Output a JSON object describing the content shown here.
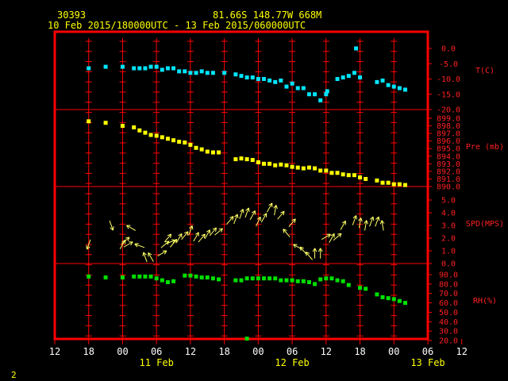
{
  "header": {
    "station": "30393",
    "location": "81.66S   148.77W    668M",
    "time_range": "10 Feb 2015/180000UTC - 13 Feb 2015/060000UTC"
  },
  "footer": {
    "page_number": "2"
  },
  "colors": {
    "frame": "#ff0000",
    "temperature": "#00e5ff",
    "pressure": "#ffff00",
    "wind": "#ffff66",
    "humidity": "#00e000",
    "axis_text": "#ff2020",
    "x_text": "#ffffff"
  },
  "x_axis": {
    "tick_labels": [
      "12",
      "18",
      "00",
      "06",
      "12",
      "18",
      "00",
      "06",
      "12",
      "18",
      "00",
      "06",
      "12"
    ],
    "date_labels": [
      "11 Feb",
      "12 Feb",
      "13 Feb"
    ]
  },
  "chart_data": [
    {
      "type": "scatter",
      "ylabel": "T(C)",
      "ylim": [
        -20,
        0
      ],
      "yticks": [
        0,
        -5,
        -10,
        -15,
        -20
      ],
      "ytick_labels": [
        "0.0",
        "-5.0",
        "-10.0",
        "-15.0",
        "-20.0"
      ],
      "points": [
        [
          -36,
          -6.5
        ],
        [
          -33,
          -6
        ],
        [
          -30,
          -6
        ],
        [
          -28,
          -6.5
        ],
        [
          -27,
          -6.5
        ],
        [
          -26,
          -6.5
        ],
        [
          -25,
          -6
        ],
        [
          -24,
          -6
        ],
        [
          -23,
          -7
        ],
        [
          -22,
          -6.5
        ],
        [
          -21,
          -6.5
        ],
        [
          -20,
          -7.5
        ],
        [
          -19,
          -7.5
        ],
        [
          -18,
          -8
        ],
        [
          -17,
          -8
        ],
        [
          -16,
          -7.5
        ],
        [
          -15,
          -8
        ],
        [
          -14,
          -8
        ],
        [
          -12,
          -8
        ],
        [
          -10,
          -8.5
        ],
        [
          -9,
          -9
        ],
        [
          -8,
          -9.5
        ],
        [
          -7,
          -9.5
        ],
        [
          -6,
          -10
        ],
        [
          -5,
          -10
        ],
        [
          -4,
          -10.5
        ],
        [
          -3,
          -11
        ],
        [
          -2,
          -10.5
        ],
        [
          -1,
          -12.5
        ],
        [
          0,
          -11.5
        ],
        [
          1,
          -13
        ],
        [
          2,
          -13
        ],
        [
          3,
          -15
        ],
        [
          4,
          -15
        ],
        [
          5,
          -17
        ],
        [
          6,
          -15
        ],
        [
          6.2,
          -14
        ],
        [
          8,
          -10
        ],
        [
          9,
          -9.5
        ],
        [
          10,
          -9
        ],
        [
          11,
          -8
        ],
        [
          11.3,
          0
        ],
        [
          12,
          -9.5
        ],
        [
          15,
          -11
        ],
        [
          16,
          -10.5
        ],
        [
          17,
          -12
        ],
        [
          18,
          -12.5
        ],
        [
          19,
          -13
        ],
        [
          20,
          -13.5
        ]
      ]
    },
    {
      "type": "scatter",
      "ylabel": "Pre (mb)",
      "ylim": [
        890,
        899
      ],
      "yticks": [
        899,
        898,
        897,
        896,
        895,
        894,
        893,
        892,
        891,
        890
      ],
      "ytick_labels": [
        "899.0",
        "898.0",
        "897.0",
        "896.0",
        "895.0",
        "894.0",
        "893.0",
        "892.0",
        "891.0",
        "890.0"
      ],
      "points": [
        [
          -36,
          898.6
        ],
        [
          -33,
          898.4
        ],
        [
          -30,
          898
        ],
        [
          -28,
          897.8
        ],
        [
          -27,
          897.4
        ],
        [
          -26,
          897.1
        ],
        [
          -25,
          896.8
        ],
        [
          -24,
          896.7
        ],
        [
          -23,
          896.5
        ],
        [
          -22,
          896.3
        ],
        [
          -21,
          896.1
        ],
        [
          -20,
          895.9
        ],
        [
          -19,
          895.8
        ],
        [
          -18,
          895.5
        ],
        [
          -17,
          895.1
        ],
        [
          -16,
          894.9
        ],
        [
          -15,
          894.6
        ],
        [
          -14,
          894.5
        ],
        [
          -13,
          894.5
        ],
        [
          -10,
          893.6
        ],
        [
          -9,
          893.7
        ],
        [
          -8,
          893.6
        ],
        [
          -7,
          893.5
        ],
        [
          -6,
          893.2
        ],
        [
          -5,
          893
        ],
        [
          -4,
          893
        ],
        [
          -3,
          892.8
        ],
        [
          -2,
          892.9
        ],
        [
          -1,
          892.8
        ],
        [
          0,
          892.6
        ],
        [
          1,
          892.5
        ],
        [
          2,
          892.4
        ],
        [
          3,
          892.5
        ],
        [
          4,
          892.4
        ],
        [
          5,
          892.1
        ],
        [
          6,
          892.1
        ],
        [
          7,
          891.8
        ],
        [
          8,
          891.8
        ],
        [
          9,
          891.6
        ],
        [
          10,
          891.5
        ],
        [
          11,
          891.5
        ],
        [
          12,
          891.2
        ],
        [
          13,
          891
        ],
        [
          15,
          890.8
        ],
        [
          16,
          890.5
        ],
        [
          17,
          890.5
        ],
        [
          18,
          890.3
        ],
        [
          19,
          890.3
        ],
        [
          20,
          890.2
        ]
      ]
    },
    {
      "type": "wind_arrows",
      "ylabel": "SPD(MPS)",
      "ylim": [
        0,
        5
      ],
      "yticks": [
        5,
        4,
        3,
        2,
        1,
        0
      ],
      "ytick_labels": [
        "5.0",
        "4.0",
        "3.0",
        "2.0",
        "1.0",
        "0.0"
      ],
      "points": [
        [
          -36,
          1.5,
          200
        ],
        [
          -32,
          3,
          160
        ],
        [
          -30,
          1.5,
          30
        ],
        [
          -29.5,
          1.8,
          50
        ],
        [
          -29,
          1.5,
          60
        ],
        [
          -28.5,
          2.8,
          300
        ],
        [
          -27,
          1.4,
          290
        ],
        [
          -26,
          0.5,
          340
        ],
        [
          -25,
          0.5,
          330
        ],
        [
          -23,
          0.8,
          60
        ],
        [
          -22.5,
          1.5,
          50
        ],
        [
          -22,
          2,
          40
        ],
        [
          -21.5,
          1.7,
          70
        ],
        [
          -21,
          1.6,
          40
        ],
        [
          -20,
          2,
          30
        ],
        [
          -19,
          2.2,
          40
        ],
        [
          -18,
          2.6,
          20
        ],
        [
          -17,
          2.1,
          30
        ],
        [
          -16,
          2,
          40
        ],
        [
          -15,
          2.3,
          30
        ],
        [
          -14,
          2.5,
          40
        ],
        [
          -13,
          2.5,
          50
        ],
        [
          -11,
          3.4,
          40
        ],
        [
          -10,
          3.5,
          20
        ],
        [
          -9,
          3.9,
          20
        ],
        [
          -8,
          4,
          20
        ],
        [
          -7,
          3.8,
          30
        ],
        [
          -6,
          3.3,
          25
        ],
        [
          -5,
          3.6,
          30
        ],
        [
          -4,
          4.4,
          30
        ],
        [
          -3,
          4.2,
          10
        ],
        [
          -2,
          3.8,
          40
        ],
        [
          -1,
          2.4,
          320
        ],
        [
          0,
          3.2,
          40
        ],
        [
          1,
          1.3,
          300
        ],
        [
          2,
          1,
          320
        ],
        [
          3,
          0.6,
          320
        ],
        [
          4,
          0.8,
          0
        ],
        [
          5,
          0.8,
          0
        ],
        [
          6,
          2.1,
          60
        ],
        [
          7,
          2,
          30
        ],
        [
          8,
          2.1,
          50
        ],
        [
          9,
          3,
          30
        ],
        [
          11,
          3.4,
          20
        ],
        [
          12,
          3.2,
          10
        ],
        [
          13,
          3,
          10
        ],
        [
          14,
          3.3,
          20
        ],
        [
          15,
          3.3,
          20
        ],
        [
          16,
          3,
          350
        ]
      ]
    },
    {
      "type": "scatter",
      "ylabel": "RH(%)",
      "ylim": [
        20,
        90
      ],
      "yticks": [
        90,
        80,
        70,
        60,
        50,
        40,
        30,
        20
      ],
      "ytick_labels": [
        "90.0",
        "80.0",
        "70.0",
        "60.0",
        "50.0",
        "40.0",
        "30.0",
        "20.0"
      ],
      "points": [
        [
          -36,
          88
        ],
        [
          -33,
          87
        ],
        [
          -30,
          87
        ],
        [
          -28,
          88
        ],
        [
          -27,
          88
        ],
        [
          -26,
          88
        ],
        [
          -25,
          88
        ],
        [
          -24,
          86
        ],
        [
          -23,
          84
        ],
        [
          -22,
          82
        ],
        [
          -21,
          83
        ],
        [
          -19,
          89
        ],
        [
          -18,
          89
        ],
        [
          -17,
          88
        ],
        [
          -16,
          87
        ],
        [
          -15,
          87
        ],
        [
          -14,
          86
        ],
        [
          -13,
          85
        ],
        [
          -10,
          84
        ],
        [
          -9,
          84
        ],
        [
          -8,
          86
        ],
        [
          -7,
          86
        ],
        [
          -6,
          86
        ],
        [
          -5,
          86
        ],
        [
          -4,
          86
        ],
        [
          -3,
          86
        ],
        [
          -2,
          84
        ],
        [
          -1,
          84
        ],
        [
          0,
          84
        ],
        [
          1,
          83
        ],
        [
          2,
          83
        ],
        [
          3,
          82
        ],
        [
          4,
          80
        ],
        [
          5,
          85
        ],
        [
          6,
          86
        ],
        [
          7,
          86
        ],
        [
          8,
          84
        ],
        [
          9,
          83
        ],
        [
          10,
          79
        ],
        [
          -8,
          22
        ],
        [
          12,
          76
        ],
        [
          13,
          75
        ],
        [
          15,
          69
        ],
        [
          16,
          66
        ],
        [
          17,
          65
        ],
        [
          18,
          64
        ],
        [
          19,
          62
        ],
        [
          20,
          60
        ]
      ]
    }
  ]
}
